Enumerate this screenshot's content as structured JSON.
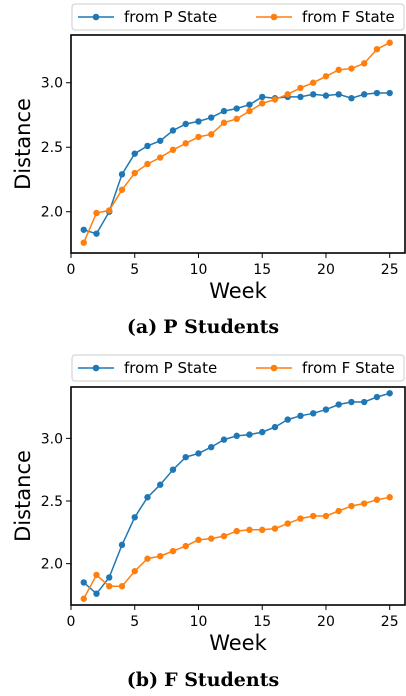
{
  "chart_data": [
    {
      "type": "line",
      "caption_label": "(a)",
      "caption_title": "P Students",
      "xlabel": "Week",
      "ylabel": "Distance",
      "xlim": [
        0,
        26.2
      ],
      "ylim": [
        1.68,
        3.37
      ],
      "xticks": [
        0,
        5,
        10,
        15,
        20,
        25
      ],
      "yticks": [
        2.0,
        2.5,
        3.0
      ],
      "grid": false,
      "legend_position": "top",
      "series": [
        {
          "name": "from P State",
          "color": "#1f77b4",
          "x": [
            1,
            2,
            3,
            4,
            5,
            6,
            7,
            8,
            9,
            10,
            11,
            12,
            13,
            14,
            15,
            16,
            17,
            18,
            19,
            20,
            21,
            22,
            23,
            24,
            25
          ],
          "y": [
            1.86,
            1.83,
            2.0,
            2.29,
            2.45,
            2.51,
            2.55,
            2.63,
            2.68,
            2.7,
            2.73,
            2.78,
            2.8,
            2.83,
            2.89,
            2.88,
            2.89,
            2.89,
            2.91,
            2.9,
            2.91,
            2.88,
            2.91,
            2.92,
            2.92
          ]
        },
        {
          "name": "from F State",
          "color": "#ff7f0e",
          "x": [
            1,
            2,
            3,
            4,
            5,
            6,
            7,
            8,
            9,
            10,
            11,
            12,
            13,
            14,
            15,
            16,
            17,
            18,
            19,
            20,
            21,
            22,
            23,
            24,
            25
          ],
          "y": [
            1.76,
            1.99,
            2.01,
            2.17,
            2.3,
            2.37,
            2.42,
            2.48,
            2.53,
            2.58,
            2.6,
            2.69,
            2.72,
            2.78,
            2.84,
            2.87,
            2.91,
            2.96,
            3.0,
            3.05,
            3.1,
            3.11,
            3.15,
            3.26,
            3.31
          ]
        }
      ]
    },
    {
      "type": "line",
      "caption_label": "(b)",
      "caption_title": "F Students",
      "xlabel": "Week",
      "ylabel": "Distance",
      "xlim": [
        0,
        26.2
      ],
      "ylim": [
        1.67,
        3.41
      ],
      "xticks": [
        0,
        5,
        10,
        15,
        20,
        25
      ],
      "yticks": [
        2.0,
        2.5,
        3.0
      ],
      "grid": false,
      "legend_position": "top",
      "series": [
        {
          "name": "from P State",
          "color": "#1f77b4",
          "x": [
            1,
            2,
            3,
            4,
            5,
            6,
            7,
            8,
            9,
            10,
            11,
            12,
            13,
            14,
            15,
            16,
            17,
            18,
            19,
            20,
            21,
            22,
            23,
            24,
            25
          ],
          "y": [
            1.85,
            1.76,
            1.89,
            2.15,
            2.37,
            2.53,
            2.63,
            2.75,
            2.85,
            2.88,
            2.93,
            2.99,
            3.02,
            3.03,
            3.05,
            3.09,
            3.15,
            3.18,
            3.2,
            3.23,
            3.27,
            3.29,
            3.29,
            3.33,
            3.36
          ]
        },
        {
          "name": "from F State",
          "color": "#ff7f0e",
          "x": [
            1,
            2,
            3,
            4,
            5,
            6,
            7,
            8,
            9,
            10,
            11,
            12,
            13,
            14,
            15,
            16,
            17,
            18,
            19,
            20,
            21,
            22,
            23,
            24,
            25
          ],
          "y": [
            1.72,
            1.91,
            1.82,
            1.82,
            1.94,
            2.04,
            2.06,
            2.1,
            2.14,
            2.19,
            2.2,
            2.22,
            2.26,
            2.27,
            2.27,
            2.28,
            2.32,
            2.36,
            2.38,
            2.38,
            2.42,
            2.46,
            2.48,
            2.51,
            2.53
          ]
        }
      ]
    }
  ]
}
